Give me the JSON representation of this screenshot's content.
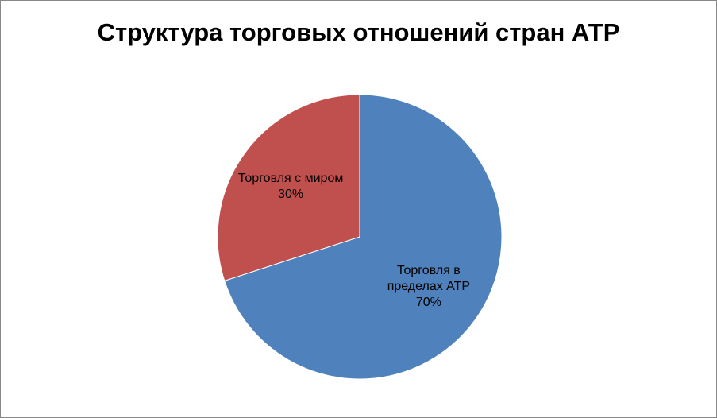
{
  "chart_data": {
    "type": "pie",
    "title": "Структура торговых отношений стран АТР",
    "categories": [
      "Торговля в пределах АТР",
      "Торговля с миром"
    ],
    "values": [
      70,
      30
    ],
    "value_labels": [
      "70%",
      "30%"
    ],
    "colors": [
      "#4f81bd",
      "#c0504d"
    ]
  }
}
